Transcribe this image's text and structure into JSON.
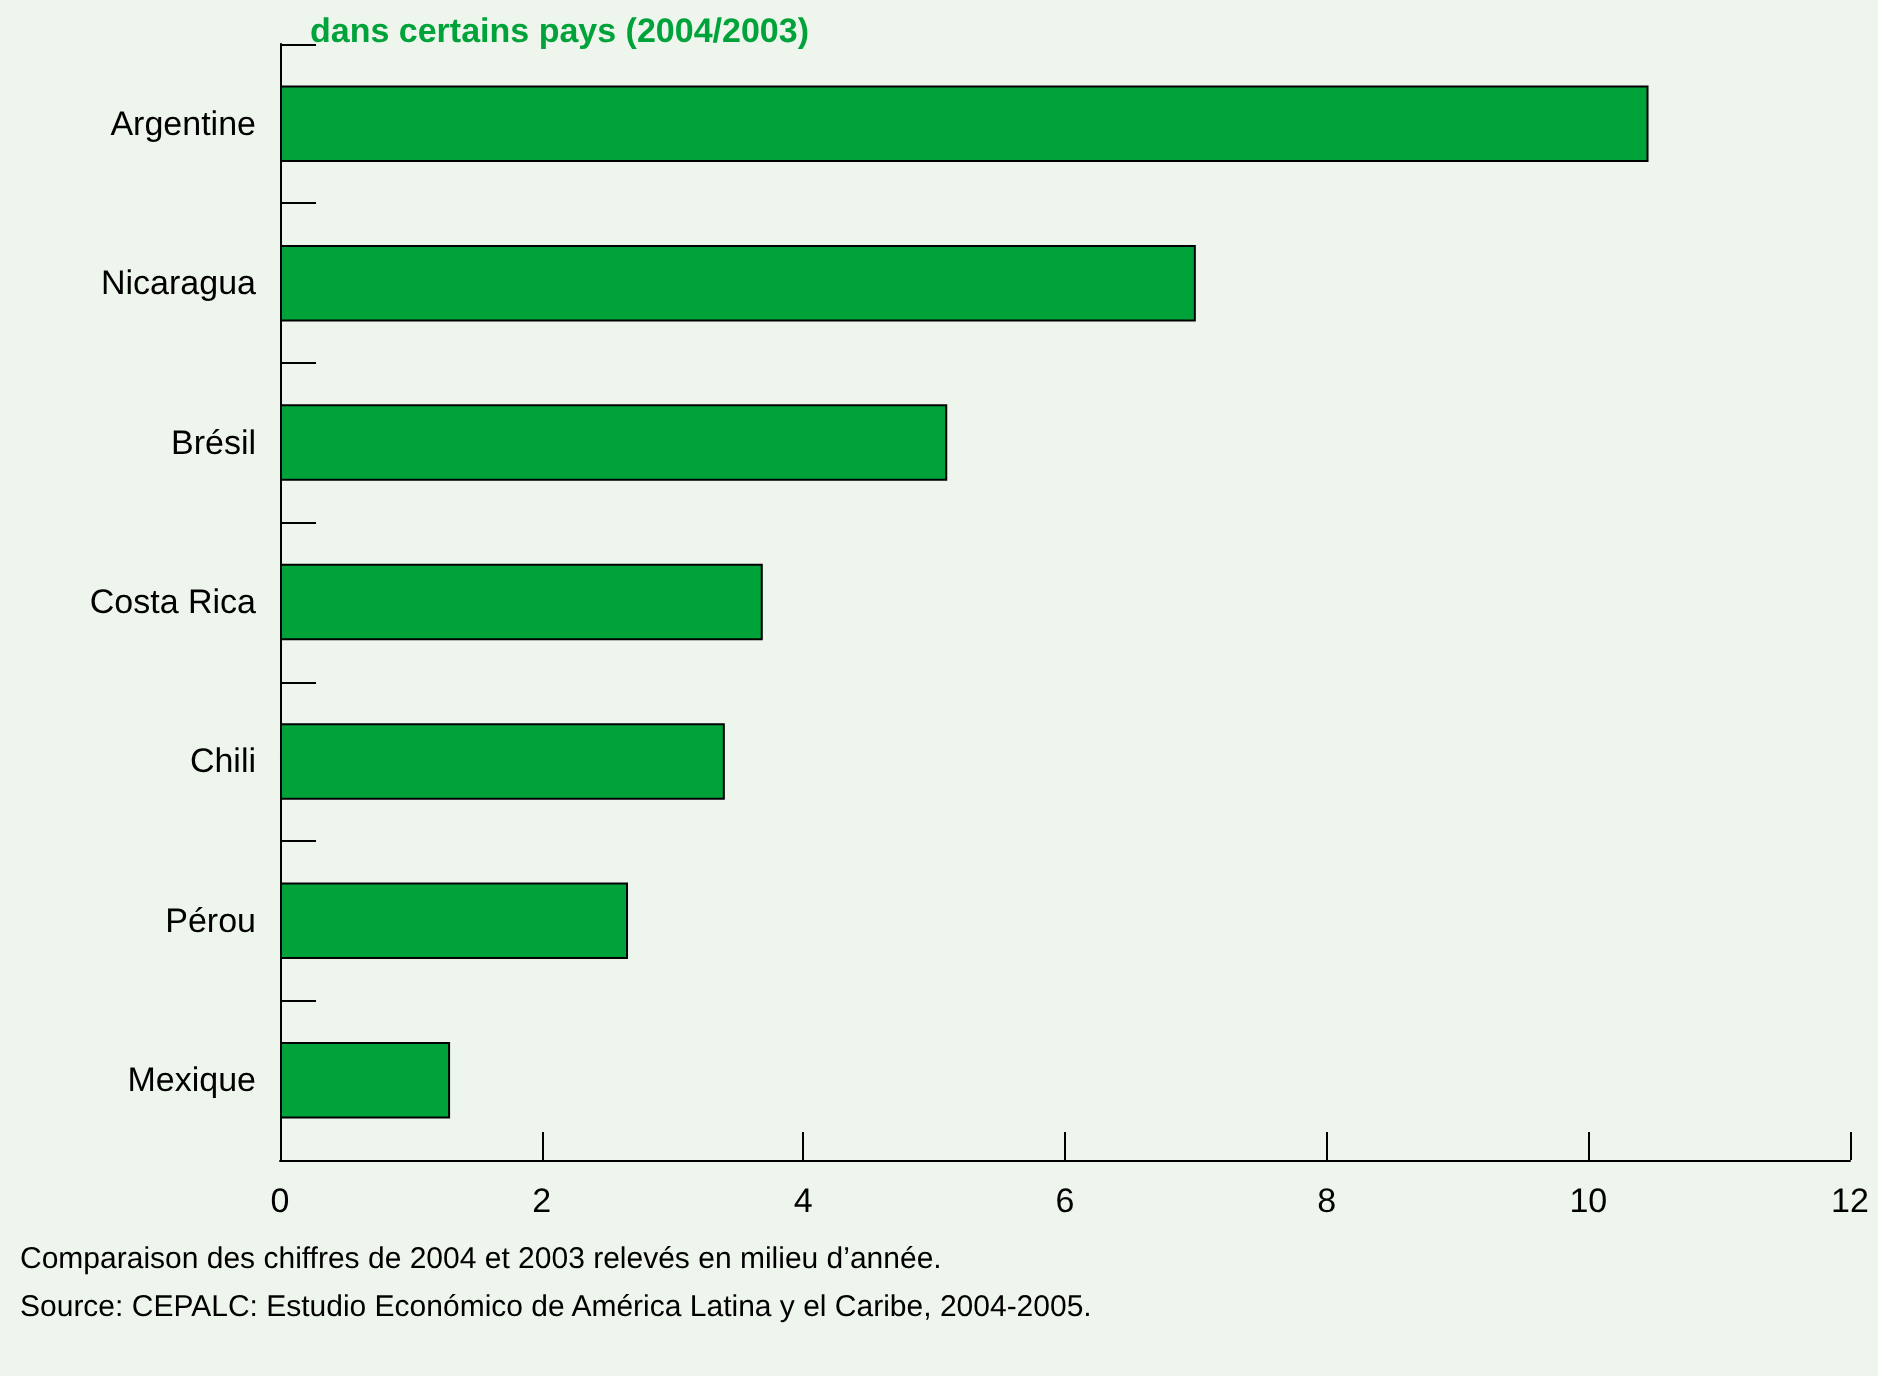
{
  "chart_data": {
    "type": "bar",
    "orientation": "horizontal",
    "title": "dans certains pays (2004/2003)",
    "categories": [
      "Argentine",
      "Nicaragua",
      "Brésil",
      "Costa Rica",
      "Chili",
      "Pérou",
      "Mexique"
    ],
    "values": [
      10.46,
      7.0,
      5.1,
      3.69,
      3.4,
      2.66,
      1.3
    ],
    "color": "#00a33a",
    "xlim": [
      0,
      12
    ],
    "xticks": [
      0,
      2,
      4,
      6,
      8,
      10,
      12
    ],
    "grid": false,
    "annotations": [
      "Comparaison des chiffres de 2004 et 2003 relevés en milieu d’année.",
      "Source: CEPALC: Estudio Económico de América Latina y el Caribe, 2004-2005."
    ]
  }
}
